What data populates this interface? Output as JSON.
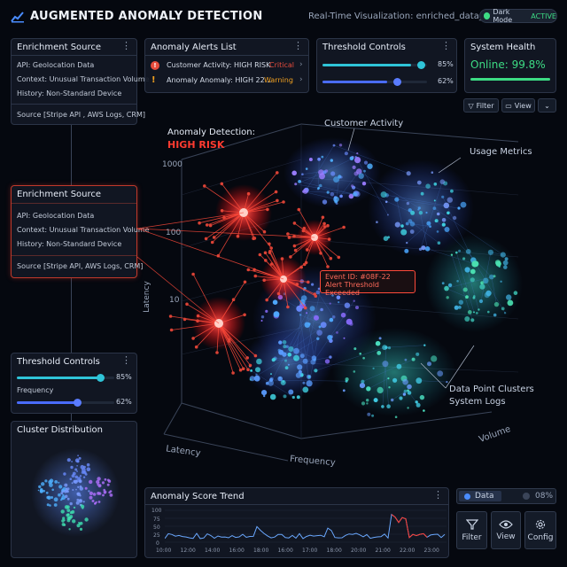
{
  "header": {
    "title": "AUGMENTED ANOMALY DETECTION",
    "subtitle": "Real-Time Visualization: enriched_data_v4.1",
    "dark_mode_label": "Dark Mode",
    "dark_mode_state": "ACTIVE"
  },
  "enrichment_top": {
    "title": "Enrichment Source",
    "api": "API: Geolocation Data",
    "context": "Context: Unusual Transaction Volume",
    "history": "History: Non-Standard Device",
    "source": "Source [Stripe API , AWS Logs, CRM]"
  },
  "enrichment_mid": {
    "title": "Enrichment Source",
    "api": "API: Geolocation Data",
    "context": "Context: Unusual Transaction Volume",
    "history": "History: Non-Standard Device",
    "source": "Source [Stripe API, AWS Logs, CRM]"
  },
  "alerts": {
    "title": "Anomaly Alerts List",
    "items": [
      {
        "text": "Customer Activity: HIGH RISK",
        "level": "Critical",
        "color": "#e74c3c"
      },
      {
        "text": "Anomaly Anomaly: HIGH 22...",
        "level": "Warning",
        "color": "#f0a020"
      }
    ]
  },
  "threshold_top": {
    "title": "Threshold Controls",
    "sliders": [
      {
        "value": 85,
        "label": "85%"
      },
      {
        "value": 62,
        "label": "62%"
      }
    ]
  },
  "health": {
    "title": "System Health",
    "value": "Online: 99.8%",
    "bar_fraction": 0.998
  },
  "toolbar": {
    "filter": "Filter",
    "view": "View"
  },
  "viz": {
    "headline": "Anomaly Detection:",
    "risk": "HIGH RISK",
    "cluster_labels": [
      "Customer Activity",
      "Usage Metrics",
      "Data Point Clusters",
      "System Logs"
    ],
    "event_id": "Event ID: #08F-22",
    "event_msg": "Alert Threshold Exceeded",
    "axis_y_ticks": [
      "1000",
      "100",
      "10"
    ],
    "axis_y_label": "Latency",
    "axis_x_label": "Latency",
    "axis_z_label": "Frequency",
    "axis_vol_label": "Volume"
  },
  "threshold_bottom": {
    "title": "Threshold Controls",
    "sliders": [
      {
        "label": "",
        "value": 85,
        "pct": "85%"
      },
      {
        "label": "Frequency",
        "value": 62,
        "pct": "62%"
      }
    ]
  },
  "cluster_dist": {
    "title": "Cluster Distribution"
  },
  "trend": {
    "title": "Anomaly Score Trend",
    "y_ticks": [
      "100",
      "75",
      "50",
      "25",
      "0"
    ],
    "x_ticks": [
      "10:00",
      "12:00",
      "14:00",
      "16:00",
      "18:00",
      "16:00",
      "17:00",
      "18:00",
      "20:00",
      "21:00",
      "22:00",
      "23:00"
    ]
  },
  "data_toggle": {
    "label": "Data",
    "value": "08%"
  },
  "bottom_buttons": [
    {
      "label": "Filter",
      "icon": "funnel-icon"
    },
    {
      "label": "View",
      "icon": "eye-icon"
    },
    {
      "label": "Config",
      "icon": "gear-icon"
    }
  ],
  "colors": {
    "accent_blue": "#4a8cff",
    "online_green": "#3ddc84",
    "risk_red": "#ff3b30",
    "cyan": "#39c6e8"
  }
}
